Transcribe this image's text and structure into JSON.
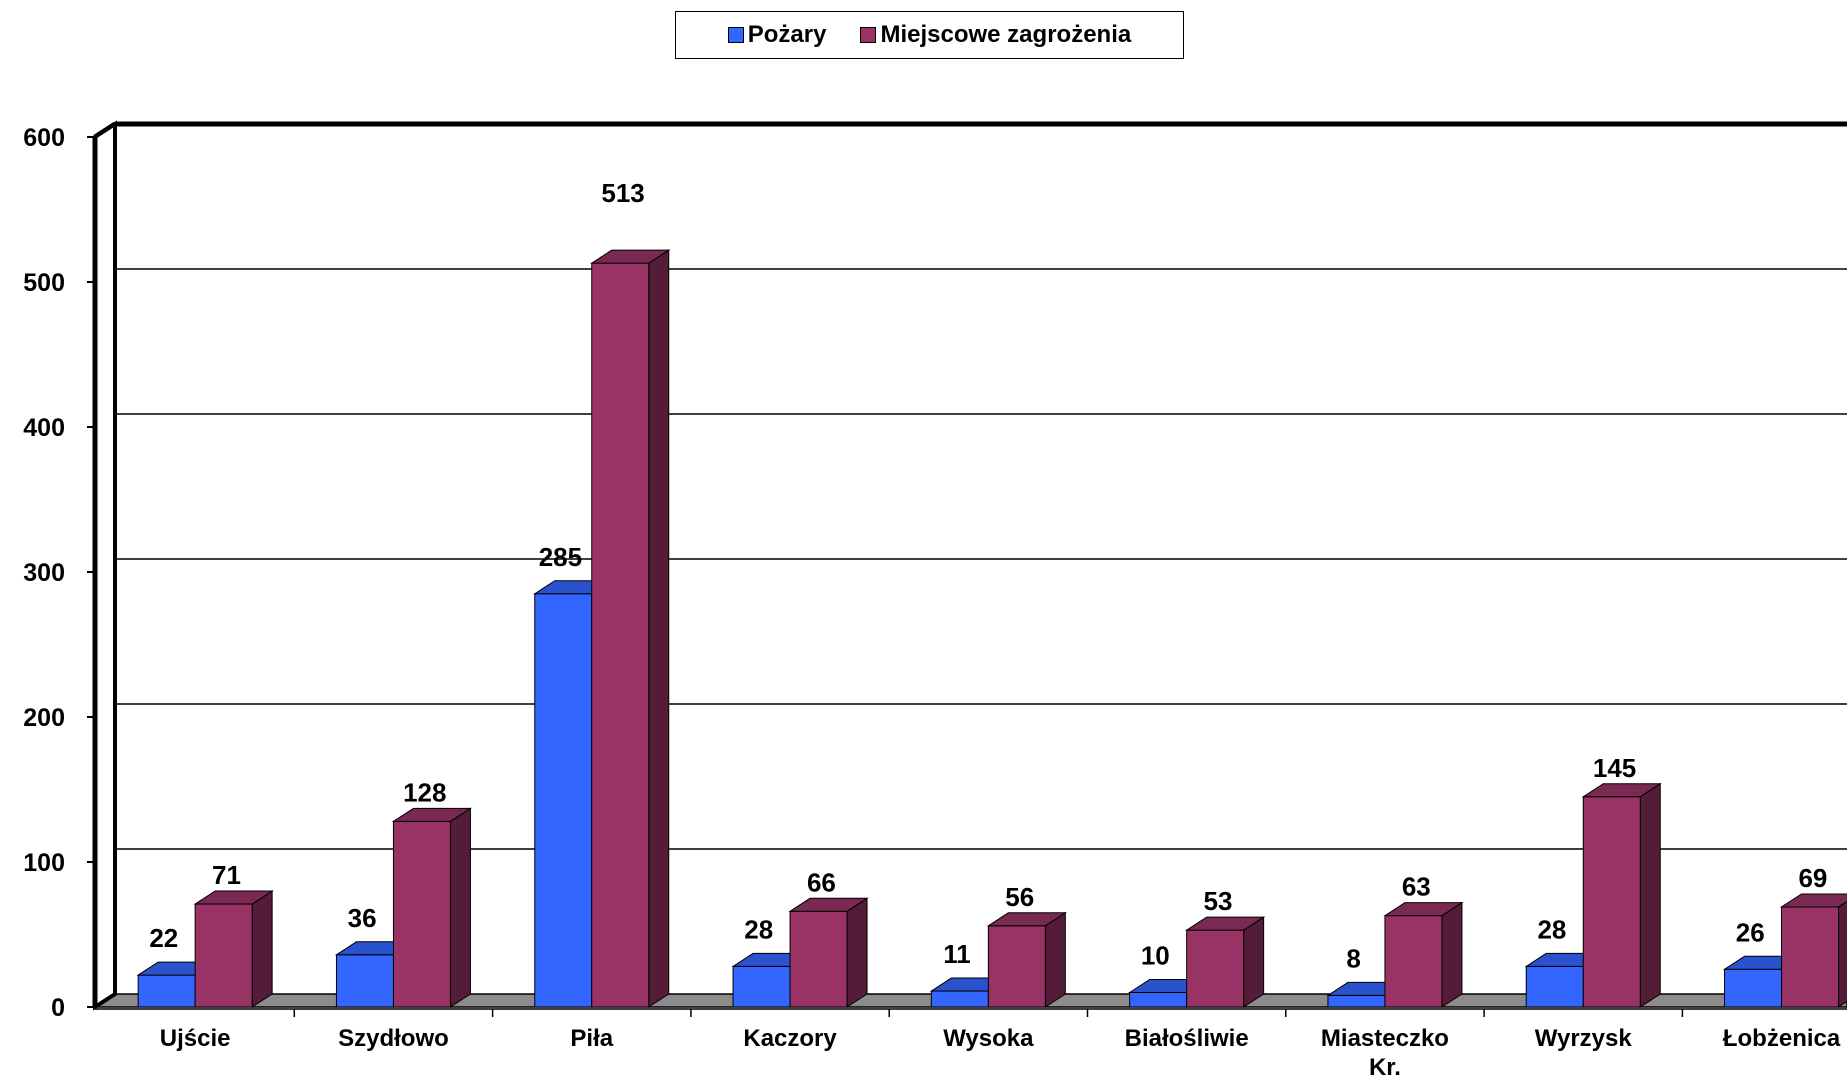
{
  "chart_data": {
    "type": "bar",
    "categories": [
      "Ujście",
      "Szydłowo",
      "Piła",
      "Kaczory",
      "Wysoka",
      "Białośliwie",
      "Miasteczko Kr.",
      "Wyrzysk",
      "Łobżenica"
    ],
    "series": [
      {
        "name": "Pożary",
        "values": [
          22,
          36,
          285,
          28,
          11,
          10,
          8,
          28,
          26
        ],
        "color": "#3366FF"
      },
      {
        "name": "Miejscowe zagrożenia",
        "values": [
          71,
          128,
          513,
          66,
          56,
          53,
          63,
          145,
          69
        ],
        "color": "#993366"
      }
    ],
    "ylim": [
      0,
      600
    ],
    "yticks": [
      0,
      100,
      200,
      300,
      400,
      500,
      600
    ],
    "grid": true,
    "legend_position": "top-center",
    "style": "3d-clustered-column"
  }
}
